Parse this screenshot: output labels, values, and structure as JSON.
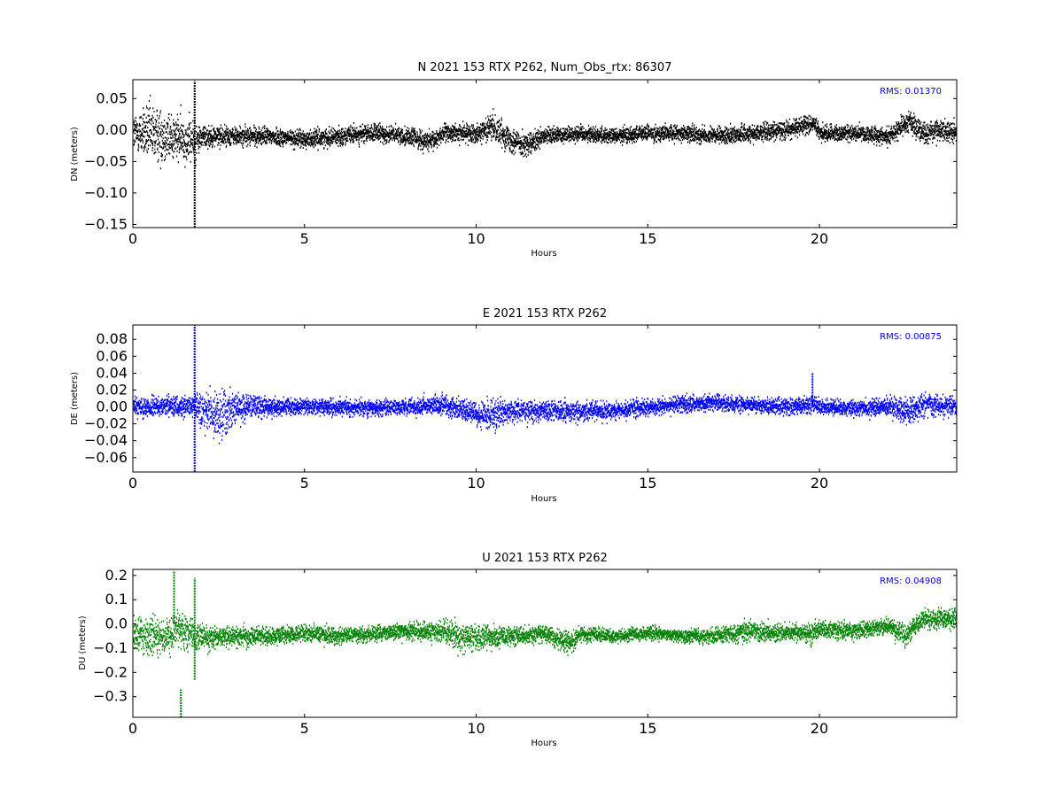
{
  "chart_data": [
    {
      "type": "scatter",
      "title": "N 2021 153 RTX  P262, Num_Obs_rtx: 86307",
      "xlabel": "Hours",
      "ylabel": "DN (meters)",
      "xlim": [
        0,
        24
      ],
      "ylim": [
        -0.155,
        0.08
      ],
      "xticks": [
        0,
        5,
        10,
        15,
        20
      ],
      "yticks": [
        0.05,
        0.0,
        -0.05,
        -0.1,
        -0.15
      ],
      "ytick_labels": [
        "0.05",
        "0.00",
        "−0.05",
        "−0.10",
        "−0.15"
      ],
      "color": "#000000",
      "rms_label": "RMS:  0.01370",
      "rms_color": "#0000ff",
      "grid": false,
      "series": [
        {
          "values_profile": {
            "hours": [
              0,
              0.5,
              1.0,
              1.5,
              1.8,
              2.0,
              3,
              4,
              5,
              6,
              7,
              8,
              8.7,
              9,
              10,
              10.5,
              11,
              11.5,
              12,
              13,
              14,
              15,
              16,
              17,
              18,
              19,
              19.8,
              20,
              21,
              22,
              22.6,
              23,
              23.5,
              24
            ],
            "mean": [
              -0.005,
              -0.005,
              -0.01,
              -0.015,
              -0.02,
              -0.01,
              -0.01,
              -0.01,
              -0.015,
              -0.01,
              -0.005,
              -0.01,
              -0.02,
              -0.005,
              -0.005,
              0.005,
              -0.015,
              -0.025,
              -0.01,
              -0.005,
              -0.01,
              -0.005,
              -0.005,
              -0.01,
              -0.005,
              0.0,
              0.01,
              -0.005,
              -0.005,
              -0.01,
              0.015,
              -0.005,
              0.0,
              -0.005
            ],
            "spread": [
              0.025,
              0.04,
              0.035,
              0.03,
              0.03,
              0.015,
              0.013,
              0.012,
              0.012,
              0.012,
              0.012,
              0.012,
              0.014,
              0.012,
              0.012,
              0.018,
              0.018,
              0.016,
              0.012,
              0.011,
              0.011,
              0.011,
              0.011,
              0.011,
              0.012,
              0.012,
              0.013,
              0.011,
              0.011,
              0.012,
              0.015,
              0.015,
              0.015,
              0.014
            ]
          },
          "spikes": [
            {
              "hour": 1.8,
              "min": -0.155,
              "max": 0.078
            }
          ]
        }
      ]
    },
    {
      "type": "scatter",
      "title": "E 2021 153 RTX  P262",
      "xlabel": "Hours",
      "ylabel": "DE (meters)",
      "xlim": [
        0,
        24
      ],
      "ylim": [
        -0.077,
        0.097
      ],
      "xticks": [
        0,
        5,
        10,
        15,
        20
      ],
      "yticks": [
        0.08,
        0.06,
        0.04,
        0.02,
        0.0,
        -0.02,
        -0.04,
        -0.06
      ],
      "ytick_labels": [
        "0.08",
        "0.06",
        "0.04",
        "0.02",
        "0.00",
        "−0.02",
        "−0.04",
        "−0.06"
      ],
      "color": "#0000ff",
      "rms_label": "RMS:  0.00875",
      "rms_color": "#0000ff",
      "grid": false,
      "series": [
        {
          "values_profile": {
            "hours": [
              0,
              1,
              1.8,
              2.2,
              2.6,
              3,
              4,
              5,
              6,
              7,
              8,
              9,
              10,
              10.5,
              11,
              12,
              13,
              14,
              15,
              16,
              17,
              18,
              19,
              19.8,
              20,
              21,
              22,
              22.6,
              23,
              24
            ],
            "mean": [
              0.0,
              0.0,
              0.0,
              -0.01,
              -0.01,
              0.0,
              0.0,
              0.0,
              0.0,
              -0.002,
              0.0,
              0.002,
              -0.008,
              -0.01,
              -0.005,
              -0.005,
              -0.005,
              -0.005,
              0.0,
              0.003,
              0.005,
              0.002,
              0.0,
              0.003,
              0.0,
              -0.002,
              0.0,
              -0.005,
              0.003,
              0.0
            ],
            "spread": [
              0.01,
              0.01,
              0.012,
              0.022,
              0.025,
              0.015,
              0.01,
              0.008,
              0.008,
              0.008,
              0.008,
              0.01,
              0.012,
              0.015,
              0.012,
              0.01,
              0.01,
              0.009,
              0.008,
              0.008,
              0.008,
              0.008,
              0.008,
              0.01,
              0.008,
              0.008,
              0.01,
              0.014,
              0.012,
              0.01
            ]
          },
          "spikes": [
            {
              "hour": 1.8,
              "min": -0.077,
              "max": 0.097
            },
            {
              "hour": 19.8,
              "min": 0.0,
              "max": 0.04
            }
          ]
        }
      ]
    },
    {
      "type": "scatter",
      "title": "U 2021 153 RTX  P262",
      "xlabel": "Hours",
      "ylabel": "DU (meters)",
      "xlim": [
        0,
        24
      ],
      "ylim": [
        -0.385,
        0.225
      ],
      "xticks": [
        0,
        5,
        10,
        15,
        20
      ],
      "yticks": [
        0.2,
        0.1,
        0.0,
        -0.1,
        -0.2,
        -0.3
      ],
      "ytick_labels": [
        "0.2",
        "0.1",
        "0.0",
        "−0.1",
        "−0.2",
        "−0.3"
      ],
      "color": "#008000",
      "rms_label": "RMS:  0.04908",
      "rms_color": "#0000ff",
      "grid": false,
      "series": [
        {
          "values_profile": {
            "hours": [
              0,
              0.5,
              1.0,
              1.3,
              1.8,
              2.2,
              3,
              4,
              5,
              6,
              7,
              8,
              9,
              9.5,
              10,
              11,
              12,
              12.8,
              13,
              14,
              15,
              16,
              17,
              18,
              19,
              19.8,
              20,
              21,
              22,
              22.5,
              23,
              24
            ],
            "mean": [
              -0.03,
              -0.06,
              -0.05,
              -0.02,
              -0.05,
              -0.06,
              -0.05,
              -0.05,
              -0.04,
              -0.05,
              -0.04,
              -0.03,
              -0.03,
              -0.05,
              -0.06,
              -0.05,
              -0.04,
              -0.08,
              -0.04,
              -0.05,
              -0.04,
              -0.05,
              -0.05,
              -0.03,
              -0.04,
              -0.04,
              -0.02,
              -0.03,
              -0.01,
              -0.05,
              0.02,
              0.02
            ],
            "spread": [
              0.06,
              0.07,
              0.06,
              0.06,
              0.05,
              0.04,
              0.035,
              0.03,
              0.03,
              0.03,
              0.03,
              0.03,
              0.04,
              0.05,
              0.045,
              0.035,
              0.03,
              0.04,
              0.03,
              0.025,
              0.025,
              0.025,
              0.03,
              0.035,
              0.03,
              0.035,
              0.03,
              0.03,
              0.03,
              0.04,
              0.035,
              0.035
            ]
          },
          "spikes": [
            {
              "hour": 1.8,
              "min": -0.23,
              "max": 0.19
            },
            {
              "hour": 1.2,
              "min": 0.0,
              "max": 0.22
            },
            {
              "hour": 1.4,
              "min": -0.385,
              "max": -0.27
            }
          ]
        }
      ]
    }
  ]
}
